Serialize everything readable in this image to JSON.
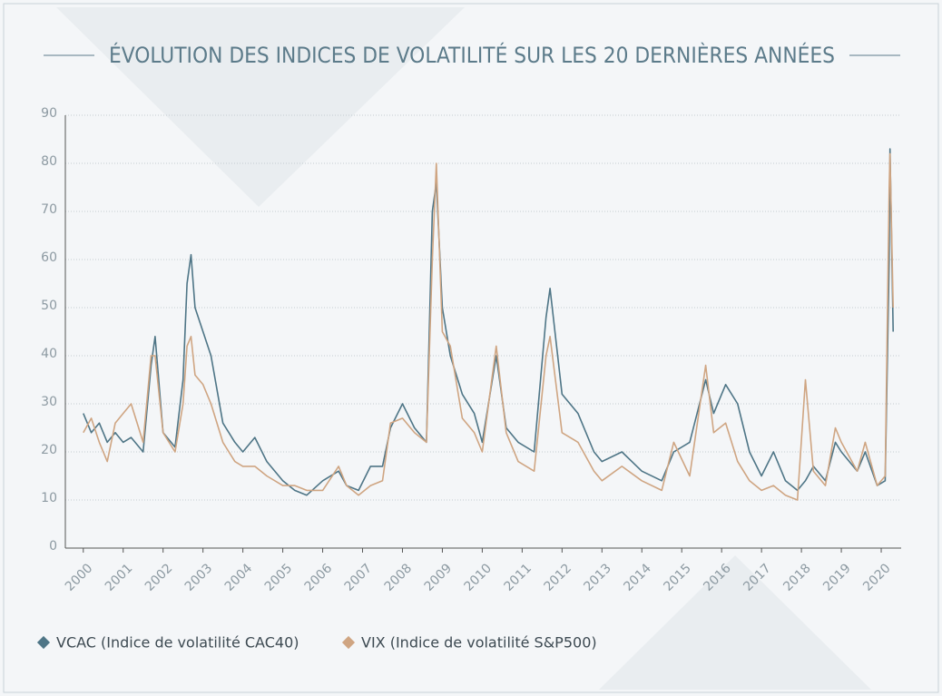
{
  "chart_data": {
    "type": "line",
    "title": "ÉVOLUTION DES INDICES DE VOLATILITÉ SUR LES 20 DERNIÈRES ANNÉES",
    "x": [
      2000.0,
      2000.2,
      2000.4,
      2000.6,
      2000.8,
      2001.0,
      2001.2,
      2001.5,
      2001.7,
      2001.8,
      2002.0,
      2002.3,
      2002.5,
      2002.6,
      2002.7,
      2002.8,
      2003.0,
      2003.2,
      2003.5,
      2003.8,
      2004.0,
      2004.3,
      2004.6,
      2005.0,
      2005.3,
      2005.6,
      2006.0,
      2006.4,
      2006.6,
      2006.9,
      2007.2,
      2007.5,
      2007.7,
      2008.0,
      2008.3,
      2008.6,
      2008.75,
      2008.85,
      2009.0,
      2009.2,
      2009.5,
      2009.8,
      2010.0,
      2010.35,
      2010.6,
      2010.9,
      2011.3,
      2011.6,
      2011.7,
      2012.0,
      2012.4,
      2012.8,
      2013.0,
      2013.5,
      2014.0,
      2014.5,
      2014.8,
      2015.2,
      2015.6,
      2015.8,
      2016.1,
      2016.4,
      2016.7,
      2017.0,
      2017.3,
      2017.6,
      2017.9,
      2018.1,
      2018.3,
      2018.6,
      2018.85,
      2019.0,
      2019.4,
      2019.6,
      2019.9,
      2020.1,
      2020.2,
      2020.22,
      2020.3
    ],
    "series": [
      {
        "name": "VCAC (Indice de volatilité CAC40)",
        "color": "#4e7586",
        "values": [
          28,
          24,
          26,
          22,
          24,
          22,
          23,
          20,
          38,
          44,
          24,
          21,
          35,
          55,
          61,
          50,
          45,
          40,
          26,
          22,
          20,
          23,
          18,
          14,
          12,
          11,
          14,
          16,
          13,
          12,
          17,
          17,
          25,
          30,
          25,
          22,
          70,
          76,
          50,
          40,
          32,
          28,
          22,
          40,
          25,
          22,
          20,
          48,
          54,
          32,
          28,
          20,
          18,
          20,
          16,
          14,
          20,
          22,
          35,
          28,
          34,
          30,
          20,
          15,
          20,
          14,
          12,
          14,
          17,
          14,
          22,
          20,
          16,
          20,
          13,
          14,
          60,
          83,
          45
        ]
      },
      {
        "name": "VIX (Indice de volatilité S&P500)",
        "color": "#cfa582",
        "values": [
          24,
          27,
          22,
          18,
          26,
          28,
          30,
          22,
          40,
          40,
          24,
          20,
          30,
          42,
          44,
          36,
          34,
          30,
          22,
          18,
          17,
          17,
          15,
          13,
          13,
          12,
          12,
          17,
          13,
          11,
          13,
          14,
          26,
          27,
          24,
          22,
          60,
          80,
          45,
          42,
          27,
          24,
          20,
          42,
          24,
          18,
          16,
          40,
          44,
          24,
          22,
          16,
          14,
          17,
          14,
          12,
          22,
          15,
          38,
          24,
          26,
          18,
          14,
          12,
          13,
          11,
          10,
          35,
          16,
          13,
          25,
          22,
          16,
          22,
          13,
          15,
          75,
          82,
          50
        ]
      }
    ],
    "xlim": [
      1999.55,
      2020.5
    ],
    "xticks": [
      2000,
      2001,
      2002,
      2003,
      2004,
      2005,
      2006,
      2007,
      2008,
      2009,
      2010,
      2011,
      2012,
      2013,
      2014,
      2015,
      2016,
      2017,
      2018,
      2019,
      2020
    ],
    "ylim": [
      0,
      90
    ],
    "yticks": [
      0,
      10,
      20,
      30,
      40,
      50,
      60,
      70,
      80,
      90
    ],
    "grid": true,
    "legend": "bottom-left"
  }
}
